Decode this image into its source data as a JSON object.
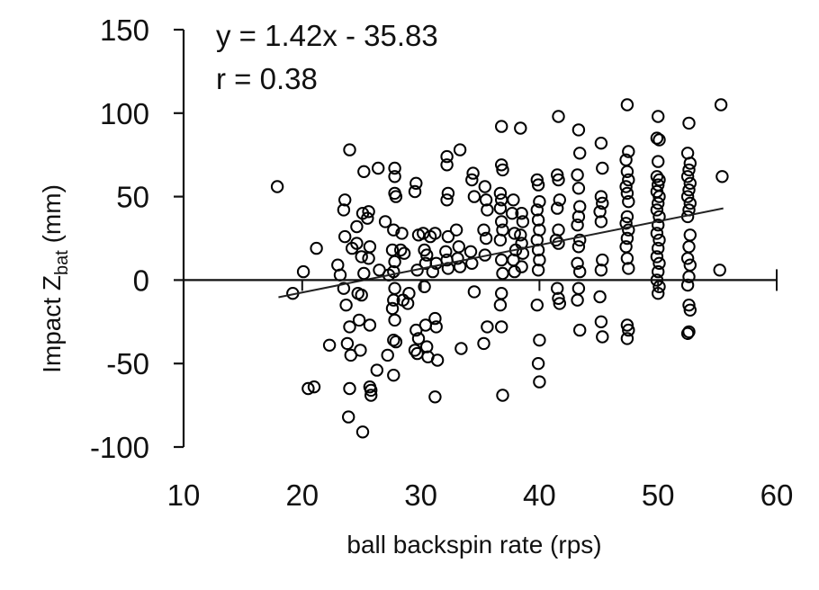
{
  "chart_data": {
    "type": "scatter",
    "title": "",
    "xlabel": "ball backspin rate (rps)",
    "ylabel_main": "Impact Z",
    "ylabel_sub": "bat",
    "ylabel_unit": " (mm)",
    "xlim": [
      10,
      60
    ],
    "ylim": [
      -100,
      150
    ],
    "xticks": [
      10,
      20,
      30,
      40,
      50,
      60
    ],
    "yticks": [
      150,
      100,
      50,
      0,
      -50,
      -100
    ],
    "grid": false,
    "legend": null,
    "annotations": {
      "equation": "y = 1.42x - 35.83",
      "r": "r = 0.38"
    },
    "trendline": {
      "slope": 1.42,
      "intercept": -35.83,
      "x_start": 18.0,
      "x_end": 55.5
    },
    "marker": {
      "shape": "open-circle",
      "color": "#000000"
    },
    "points": [
      [
        17.9,
        56
      ],
      [
        19.2,
        -8
      ],
      [
        20.1,
        5
      ],
      [
        21.2,
        19
      ],
      [
        20.5,
        -65
      ],
      [
        21.0,
        -64
      ],
      [
        22.3,
        -39
      ],
      [
        23.0,
        9
      ],
      [
        23.2,
        3
      ],
      [
        23.6,
        48
      ],
      [
        23.5,
        42
      ],
      [
        23.6,
        26
      ],
      [
        23.7,
        -15
      ],
      [
        23.8,
        -38
      ],
      [
        23.5,
        -5
      ],
      [
        24.0,
        78
      ],
      [
        24.2,
        19
      ],
      [
        24.0,
        -28
      ],
      [
        24.1,
        -45
      ],
      [
        24.0,
        -65
      ],
      [
        23.9,
        -82
      ],
      [
        24.6,
        22
      ],
      [
        24.6,
        32
      ],
      [
        24.7,
        -8
      ],
      [
        24.8,
        -24
      ],
      [
        24.9,
        -42
      ],
      [
        25.2,
        65
      ],
      [
        25.1,
        40
      ],
      [
        25.0,
        14
      ],
      [
        25.2,
        4
      ],
      [
        25.0,
        -9
      ],
      [
        25.1,
        -91
      ],
      [
        25.6,
        41
      ],
      [
        25.5,
        37
      ],
      [
        25.7,
        20
      ],
      [
        25.6,
        13
      ],
      [
        25.7,
        -27
      ],
      [
        25.8,
        -66
      ],
      [
        25.8,
        -69
      ],
      [
        25.7,
        -64
      ],
      [
        26.4,
        67
      ],
      [
        26.5,
        6
      ],
      [
        26.3,
        -54
      ],
      [
        27.0,
        35
      ],
      [
        27.3,
        3
      ],
      [
        27.2,
        -45
      ],
      [
        27.8,
        67
      ],
      [
        27.8,
        62
      ],
      [
        27.8,
        52
      ],
      [
        27.9,
        50
      ],
      [
        27.7,
        30
      ],
      [
        27.6,
        18
      ],
      [
        27.8,
        11
      ],
      [
        27.7,
        5
      ],
      [
        27.8,
        -5
      ],
      [
        27.7,
        -12
      ],
      [
        27.6,
        -17
      ],
      [
        27.8,
        -24
      ],
      [
        27.7,
        -36
      ],
      [
        27.9,
        -37
      ],
      [
        27.7,
        -57
      ],
      [
        28.4,
        28
      ],
      [
        28.3,
        18
      ],
      [
        28.6,
        16
      ],
      [
        28.9,
        -14
      ],
      [
        28.5,
        -12
      ],
      [
        29.0,
        -8
      ],
      [
        29.6,
        58
      ],
      [
        29.5,
        53
      ],
      [
        29.8,
        27
      ],
      [
        29.7,
        6
      ],
      [
        29.5,
        -42
      ],
      [
        29.7,
        -44
      ],
      [
        29.8,
        -35
      ],
      [
        29.6,
        -30
      ],
      [
        30.2,
        28
      ],
      [
        30.3,
        18
      ],
      [
        30.5,
        15
      ],
      [
        30.4,
        10
      ],
      [
        30.3,
        -4
      ],
      [
        30.5,
        -40
      ],
      [
        30.6,
        -46
      ],
      [
        30.4,
        -27
      ],
      [
        30.8,
        26
      ],
      [
        31.0,
        5
      ],
      [
        31.2,
        28
      ],
      [
        31.3,
        10
      ],
      [
        31.2,
        -23
      ],
      [
        31.3,
        -28
      ],
      [
        31.4,
        -48
      ],
      [
        31.2,
        -70
      ],
      [
        32.2,
        74
      ],
      [
        32.2,
        69
      ],
      [
        32.3,
        52
      ],
      [
        32.2,
        48
      ],
      [
        32.3,
        26
      ],
      [
        32.1,
        17
      ],
      [
        32.2,
        12
      ],
      [
        32.3,
        7
      ],
      [
        33.3,
        78
      ],
      [
        33.0,
        30
      ],
      [
        33.2,
        20
      ],
      [
        33.1,
        13
      ],
      [
        33.3,
        8
      ],
      [
        33.4,
        -41
      ],
      [
        34.4,
        64
      ],
      [
        34.3,
        60
      ],
      [
        34.5,
        50
      ],
      [
        34.2,
        17
      ],
      [
        34.3,
        10
      ],
      [
        34.5,
        -7
      ],
      [
        35.4,
        56
      ],
      [
        35.5,
        48
      ],
      [
        35.6,
        42
      ],
      [
        35.3,
        30
      ],
      [
        35.5,
        25
      ],
      [
        35.4,
        15
      ],
      [
        35.6,
        -28
      ],
      [
        35.3,
        -38
      ],
      [
        36.8,
        92
      ],
      [
        36.8,
        69
      ],
      [
        36.9,
        66
      ],
      [
        36.7,
        52
      ],
      [
        36.8,
        48
      ],
      [
        36.7,
        43
      ],
      [
        36.8,
        35
      ],
      [
        36.9,
        30
      ],
      [
        36.7,
        24
      ],
      [
        36.8,
        12
      ],
      [
        36.9,
        4
      ],
      [
        36.8,
        -8
      ],
      [
        36.7,
        -15
      ],
      [
        36.8,
        -28
      ],
      [
        36.9,
        -69
      ],
      [
        37.8,
        48
      ],
      [
        37.7,
        40
      ],
      [
        37.9,
        28
      ],
      [
        38.0,
        18
      ],
      [
        37.8,
        12
      ],
      [
        37.9,
        5
      ],
      [
        38.4,
        91
      ],
      [
        38.5,
        40
      ],
      [
        38.6,
        35
      ],
      [
        38.4,
        27
      ],
      [
        38.5,
        22
      ],
      [
        38.6,
        16
      ],
      [
        38.5,
        8
      ],
      [
        39.8,
        60
      ],
      [
        39.9,
        57
      ],
      [
        40.0,
        47
      ],
      [
        39.8,
        42
      ],
      [
        39.9,
        36
      ],
      [
        40.0,
        30
      ],
      [
        39.8,
        24
      ],
      [
        39.9,
        18
      ],
      [
        40.0,
        12
      ],
      [
        39.9,
        6
      ],
      [
        39.8,
        -15
      ],
      [
        40.0,
        -36
      ],
      [
        39.9,
        -50
      ],
      [
        40.0,
        -61
      ],
      [
        41.6,
        98
      ],
      [
        41.5,
        63
      ],
      [
        41.6,
        60
      ],
      [
        41.7,
        48
      ],
      [
        41.5,
        43
      ],
      [
        41.6,
        30
      ],
      [
        41.4,
        24
      ],
      [
        41.6,
        22
      ],
      [
        41.5,
        -5
      ],
      [
        41.6,
        -11
      ],
      [
        41.7,
        -14
      ],
      [
        43.3,
        90
      ],
      [
        43.4,
        76
      ],
      [
        43.2,
        63
      ],
      [
        43.3,
        55
      ],
      [
        43.4,
        44
      ],
      [
        43.3,
        38
      ],
      [
        43.2,
        33
      ],
      [
        43.4,
        24
      ],
      [
        43.3,
        20
      ],
      [
        43.2,
        10
      ],
      [
        43.4,
        5
      ],
      [
        43.3,
        -5
      ],
      [
        43.2,
        -12
      ],
      [
        43.4,
        -30
      ],
      [
        45.2,
        82
      ],
      [
        45.3,
        67
      ],
      [
        45.2,
        50
      ],
      [
        45.3,
        46
      ],
      [
        45.1,
        41
      ],
      [
        45.2,
        35
      ],
      [
        45.3,
        12
      ],
      [
        45.2,
        6
      ],
      [
        45.1,
        -10
      ],
      [
        45.2,
        -25
      ],
      [
        45.3,
        -34
      ],
      [
        47.4,
        105
      ],
      [
        47.5,
        77
      ],
      [
        47.3,
        72
      ],
      [
        47.4,
        65
      ],
      [
        47.5,
        60
      ],
      [
        47.3,
        56
      ],
      [
        47.4,
        52
      ],
      [
        47.5,
        47
      ],
      [
        47.4,
        38
      ],
      [
        47.3,
        34
      ],
      [
        47.5,
        30
      ],
      [
        47.4,
        25
      ],
      [
        47.3,
        20
      ],
      [
        47.4,
        13
      ],
      [
        47.5,
        7
      ],
      [
        47.4,
        -27
      ],
      [
        47.5,
        -30
      ],
      [
        47.4,
        -35
      ],
      [
        50.0,
        98
      ],
      [
        49.9,
        85
      ],
      [
        50.1,
        84
      ],
      [
        50.0,
        71
      ],
      [
        49.9,
        62
      ],
      [
        50.1,
        60
      ],
      [
        50.0,
        57
      ],
      [
        49.9,
        53
      ],
      [
        50.1,
        50
      ],
      [
        50.0,
        46
      ],
      [
        49.9,
        42
      ],
      [
        50.1,
        38
      ],
      [
        50.0,
        33
      ],
      [
        49.9,
        28
      ],
      [
        50.1,
        24
      ],
      [
        50.0,
        19
      ],
      [
        49.9,
        14
      ],
      [
        50.1,
        10
      ],
      [
        50.0,
        5
      ],
      [
        49.9,
        0
      ],
      [
        50.1,
        -4
      ],
      [
        50.0,
        -8
      ],
      [
        52.6,
        94
      ],
      [
        52.5,
        76
      ],
      [
        52.7,
        70
      ],
      [
        52.6,
        66
      ],
      [
        52.5,
        62
      ],
      [
        52.7,
        58
      ],
      [
        52.6,
        54
      ],
      [
        52.5,
        50
      ],
      [
        52.7,
        46
      ],
      [
        52.6,
        42
      ],
      [
        52.5,
        38
      ],
      [
        52.7,
        27
      ],
      [
        52.6,
        20
      ],
      [
        52.5,
        13
      ],
      [
        52.7,
        9
      ],
      [
        52.6,
        2
      ],
      [
        52.5,
        -3
      ],
      [
        52.6,
        -15
      ],
      [
        52.7,
        -18
      ],
      [
        52.6,
        -31
      ],
      [
        52.5,
        -32
      ],
      [
        55.3,
        105
      ],
      [
        55.4,
        62
      ],
      [
        55.2,
        6
      ]
    ]
  }
}
